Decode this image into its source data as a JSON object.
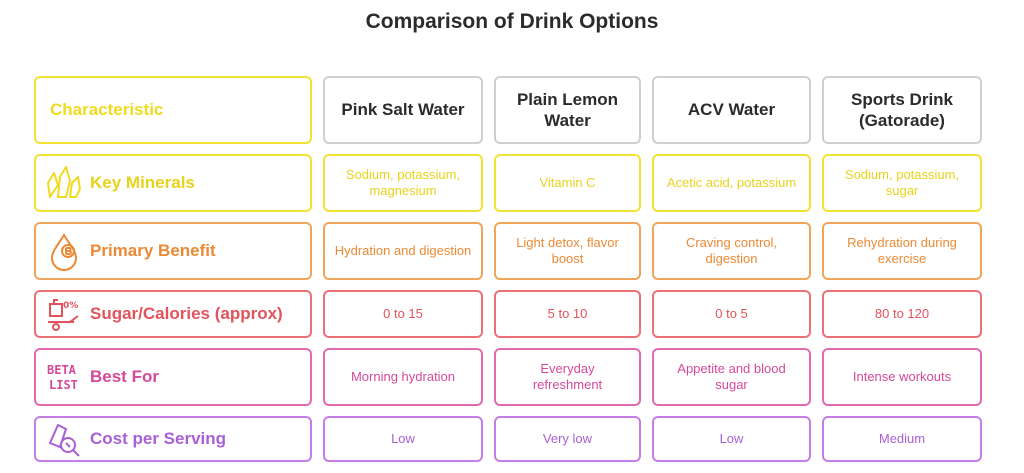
{
  "title": "Comparison of Drink Options",
  "header": {
    "characteristic": "Characteristic",
    "columns": [
      "Pink Salt Water",
      "Plain Lemon Water",
      "ACV Water",
      "Sports Drink (Gatorade)"
    ]
  },
  "rows": [
    {
      "label": "Key Minerals",
      "icon": "minerals-icon",
      "color": "#f0db1e",
      "values": [
        "Sodium, potassium, magnesium",
        "Vitamin C",
        "Acetic acid, potassium",
        "Sodium, potassium, sugar"
      ]
    },
    {
      "label": "Primary Benefit",
      "icon": "drop-benefit-icon",
      "color": "#ea8a35",
      "values": [
        "Hydration and digestion",
        "Light detox, flavor boost",
        "Craving control, digestion",
        "Rehydration during exercise"
      ]
    },
    {
      "label": "Sugar/Calories (approx)",
      "icon": "sugar-scale-icon",
      "color": "#e3535b",
      "values": [
        "0 to 15",
        "5 to 10",
        "0 to 5",
        "80 to 120"
      ]
    },
    {
      "label": "Best For",
      "icon": "beta-list-icon",
      "icon_text": [
        "BETA",
        "LIST"
      ],
      "color": "#d6499a",
      "values": [
        "Morning hydration",
        "Everyday refreshment",
        "Appetite and blood sugar",
        "Intense workouts"
      ]
    },
    {
      "label": "Cost per Serving",
      "icon": "cost-search-icon",
      "color": "#a95fd6",
      "values": [
        "Low",
        "Very low",
        "Low",
        "Medium"
      ]
    }
  ]
}
